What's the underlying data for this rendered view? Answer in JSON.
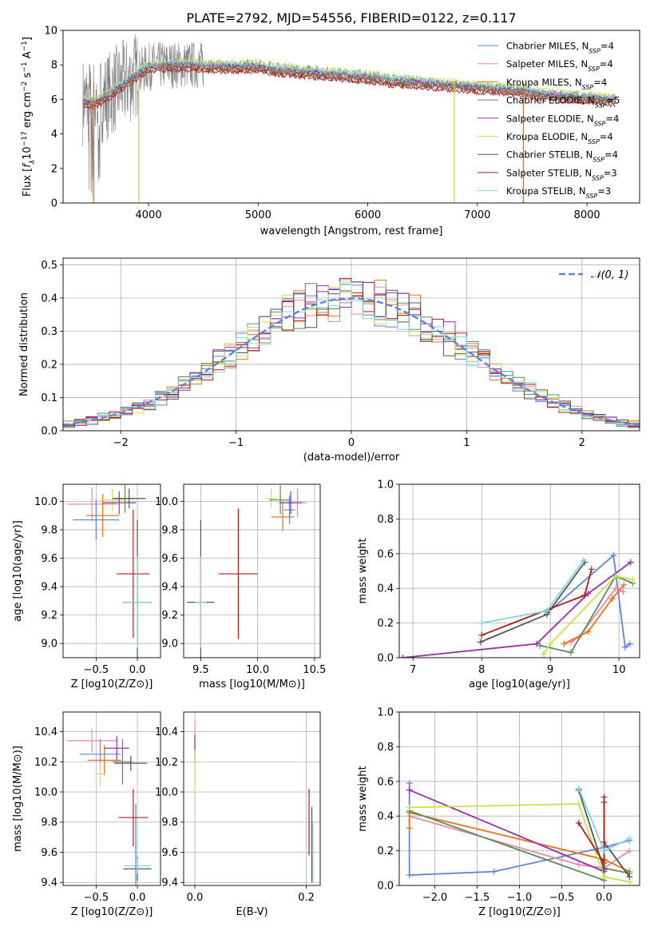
{
  "figure": {
    "title": "PLATE=2792, MJD=54556, FIBERID=0122, z=0.117",
    "palette": {
      "Chabrier MILES": "#5b86d6",
      "Salpeter MILES": "#e88aa8",
      "Kroupa MILES": "#e8731a",
      "Chabrier ELODIE": "#5c8a5c",
      "Salpeter ELODIE": "#9a2fae",
      "Kroupa ELODIE": "#c6e24a",
      "Chabrier STELIB": "#555555",
      "Salpeter STELIB": "#b01d1d",
      "Kroupa STELIB": "#7fd6dc"
    }
  },
  "chart_data": [
    {
      "id": "spectrum",
      "type": "line",
      "title": "PLATE=2792, MJD=54556, FIBERID=0122, z=0.117",
      "xlabel": "wavelength [Angstrom, rest frame]",
      "ylabel": "Flux [f_λ 10^-17 erg cm^-2 s^-1 A^-1]",
      "xlim": [
        3220,
        8480
      ],
      "ylim": [
        0,
        10
      ],
      "xticks": [
        4000,
        5000,
        6000,
        7000,
        8000
      ],
      "yticks": [
        0,
        2,
        4,
        6,
        8,
        10
      ],
      "legend_position": "right",
      "observed_series": {
        "name": "data",
        "color": "#808080",
        "x": [
          3400,
          3500,
          3600,
          3700,
          3800,
          3900,
          4000,
          4200,
          4400,
          4600,
          4800,
          5000,
          5200,
          5400,
          5600,
          5800,
          6000,
          6200,
          6400,
          6600,
          6800,
          7000,
          7200,
          7400,
          7600,
          7800,
          8000,
          8200
        ],
        "y": [
          5.9,
          5.8,
          6.1,
          6.6,
          7.0,
          7.5,
          7.9,
          8.0,
          8.0,
          7.9,
          7.9,
          7.9,
          7.7,
          7.6,
          7.5,
          7.4,
          7.3,
          7.1,
          7.0,
          6.9,
          6.8,
          6.7,
          6.6,
          6.5,
          6.3,
          6.2,
          6.1,
          6.0
        ]
      },
      "models": [
        {
          "name": "Chabrier MILES",
          "legend": "Chabrier MILES, N_SSP=4",
          "offset": 0.0
        },
        {
          "name": "Salpeter MILES",
          "legend": "Salpeter MILES, N_SSP=4",
          "offset": -0.05
        },
        {
          "name": "Kroupa MILES",
          "legend": "Kroupa MILES, N_SSP=4",
          "offset": -0.1
        },
        {
          "name": "Chabrier ELODIE",
          "legend": "Chabrier ELODIE, N_SSP=5",
          "offset": 0.05
        },
        {
          "name": "Salpeter ELODIE",
          "legend": "Salpeter ELODIE, N_SSP=4",
          "offset": 0.1
        },
        {
          "name": "Kroupa ELODIE",
          "legend": "Kroupa ELODIE, N_SSP=4",
          "offset": 0.25
        },
        {
          "name": "Chabrier STELIB",
          "legend": "Chabrier STELIB, N_SSP=4",
          "offset": -0.15
        },
        {
          "name": "Salpeter STELIB",
          "legend": "Salpeter STELIB, N_SSP=3",
          "offset": -0.3
        },
        {
          "name": "Kroupa STELIB",
          "legend": "Kroupa STELIB, N_SSP=3",
          "offset": 0.15
        }
      ]
    },
    {
      "id": "residuals",
      "type": "line",
      "xlabel": "(data-model)/error",
      "ylabel": "Normed distribution",
      "xlim": [
        -2.5,
        2.5
      ],
      "ylim": [
        0,
        0.52
      ],
      "xticks": [
        -2,
        -1,
        0,
        1,
        2
      ],
      "yticks": [
        0.0,
        0.1,
        0.2,
        0.3,
        0.4,
        0.5
      ],
      "reference_curve": {
        "name": "N(0,1)",
        "mu": 0,
        "sigma": 1,
        "legend_position": "top-right"
      },
      "bin_width": 0.1,
      "histogram_models": [
        "Chabrier MILES",
        "Salpeter MILES",
        "Kroupa MILES",
        "Chabrier ELODIE",
        "Salpeter ELODIE",
        "Kroupa ELODIE",
        "Chabrier STELIB",
        "Salpeter STELIB",
        "Kroupa STELIB"
      ]
    },
    {
      "id": "age-vs-Z",
      "type": "scatter",
      "xlabel": "Z [log10(Z/Z⊙)]",
      "ylabel": "age [log10(age/yr)]",
      "xlim": [
        -0.9,
        0.28
      ],
      "ylim": [
        8.9,
        10.12
      ],
      "xticks": [
        -0.5,
        0.0
      ],
      "yticks": [
        9.0,
        9.2,
        9.4,
        9.6,
        9.8,
        10.0
      ],
      "points": [
        {
          "model": "Salpeter MILES",
          "x": -0.55,
          "y": 9.98,
          "xerr": 0.3,
          "yerr": 0.12
        },
        {
          "model": "Kroupa MILES",
          "x": -0.42,
          "y": 9.9,
          "xerr": 0.2,
          "yerr": 0.15
        },
        {
          "model": "Chabrier MILES",
          "x": -0.5,
          "y": 9.87,
          "xerr": 0.28,
          "yerr": 0.14
        },
        {
          "model": "Kroupa ELODIE",
          "x": -0.3,
          "y": 10.01,
          "xerr": 0.15,
          "yerr": 0.08
        },
        {
          "model": "Salpeter ELODIE",
          "x": -0.22,
          "y": 9.99,
          "xerr": 0.2,
          "yerr": 0.08
        },
        {
          "model": "Chabrier ELODIE",
          "x": -0.15,
          "y": 10.02,
          "xerr": 0.12,
          "yerr": 0.1
        },
        {
          "model": "Chabrier STELIB",
          "x": -0.1,
          "y": 10.02,
          "xerr": 0.2,
          "yerr": 0.07
        },
        {
          "model": "Salpeter STELIB",
          "x": -0.05,
          "y": 9.49,
          "xerr": 0.2,
          "yerr": 0.45
        },
        {
          "model": "Chabrier STELIB",
          "x": 0.0,
          "y": 9.29,
          "xerr": 0.17,
          "yerr": 0.58
        },
        {
          "model": "Kroupa STELIB",
          "x": 0.0,
          "y": 9.29,
          "xerr": 0.16,
          "yerr": 0.32
        }
      ]
    },
    {
      "id": "age-vs-mass",
      "type": "scatter",
      "xlabel": "mass [log10(M/M⊙)]",
      "xlim": [
        9.35,
        10.55
      ],
      "ylim": [
        8.9,
        10.12
      ],
      "xticks": [
        9.5,
        10.0,
        10.5
      ],
      "yticks": [
        9.0,
        9.2,
        9.4,
        9.6,
        9.8,
        10.0
      ],
      "points": [
        {
          "model": "Salpeter MILES",
          "x": 10.35,
          "y": 9.99,
          "xerr": 0.08,
          "yerr": 0.1
        },
        {
          "model": "Kroupa MILES",
          "x": 10.22,
          "y": 9.89,
          "xerr": 0.1,
          "yerr": 0.1
        },
        {
          "model": "Chabrier MILES",
          "x": 10.28,
          "y": 9.94,
          "xerr": 0.05,
          "yerr": 0.1
        },
        {
          "model": "Salpeter ELODIE",
          "x": 10.29,
          "y": 9.99,
          "xerr": 0.1,
          "yerr": 0.08
        },
        {
          "model": "Kroupa ELODIE",
          "x": 10.12,
          "y": 10.02,
          "xerr": 0.05,
          "yerr": 0.07
        },
        {
          "model": "Chabrier ELODIE",
          "x": 10.2,
          "y": 10.01,
          "xerr": 0.1,
          "yerr": 0.1
        },
        {
          "model": "Salpeter STELIB",
          "x": 9.83,
          "y": 9.49,
          "xerr": 0.17,
          "yerr": 0.46
        },
        {
          "model": "Chabrier STELIB",
          "x": 9.5,
          "y": 9.29,
          "xerr": 0.12,
          "yerr": 0.58
        },
        {
          "model": "Kroupa STELIB",
          "x": 9.5,
          "y": 9.29,
          "xerr": 0.05,
          "yerr": 0.32
        }
      ]
    },
    {
      "id": "weight-vs-age",
      "type": "line",
      "xlabel": "age [log10(age/yr)]",
      "ylabel": "mass weight",
      "xlim": [
        6.8,
        10.3
      ],
      "ylim": [
        0,
        1.0
      ],
      "xticks": [
        7,
        8,
        9,
        10
      ],
      "yticks": [
        0.0,
        0.2,
        0.4,
        0.6,
        0.8,
        1.0
      ],
      "series": [
        {
          "name": "Chabrier MILES",
          "x": [
            8.96,
            9.92,
            10.09,
            10.16
          ],
          "y": [
            0.26,
            0.59,
            0.06,
            0.08
          ]
        },
        {
          "name": "Salpeter MILES",
          "x": [
            9.3,
            9.42,
            9.95,
            10.06
          ],
          "y": [
            0.09,
            0.12,
            0.4,
            0.38
          ]
        },
        {
          "name": "Kroupa MILES",
          "x": [
            9.2,
            9.55,
            9.9,
            10.07
          ],
          "y": [
            0.08,
            0.15,
            0.34,
            0.42
          ]
        },
        {
          "name": "Chabrier ELODIE",
          "x": [
            8.85,
            9.3,
            9.95,
            10.2
          ],
          "y": [
            0.07,
            0.03,
            0.47,
            0.43
          ]
        },
        {
          "name": "Salpeter ELODIE",
          "x": [
            6.85,
            8.8,
            9.55,
            10.17
          ],
          "y": [
            0.0,
            0.08,
            0.37,
            0.55
          ]
        },
        {
          "name": "Kroupa ELODIE",
          "x": [
            8.9,
            9.0,
            9.95,
            10.2
          ],
          "y": [
            0.02,
            0.08,
            0.47,
            0.45
          ]
        },
        {
          "name": "Chabrier STELIB",
          "x": [
            7.98,
            8.95,
            9.5
          ],
          "y": [
            0.09,
            0.25,
            0.55
          ]
        },
        {
          "name": "Salpeter STELIB",
          "x": [
            8.0,
            9.5,
            9.6
          ],
          "y": [
            0.13,
            0.36,
            0.51
          ]
        },
        {
          "name": "Kroupa STELIB",
          "x": [
            8.0,
            8.95,
            9.48
          ],
          "y": [
            0.2,
            0.27,
            0.56
          ]
        }
      ]
    },
    {
      "id": "mass-vs-Z",
      "type": "scatter",
      "xlabel": "Z [log10(Z/Z⊙)]",
      "ylabel": "mass [log10(M/M⊙)]",
      "xlim": [
        -0.9,
        0.28
      ],
      "ylim": [
        9.38,
        10.53
      ],
      "xticks": [
        -0.5,
        0.0
      ],
      "yticks": [
        9.4,
        9.6,
        9.8,
        10.0,
        10.2,
        10.4
      ],
      "points": [
        {
          "model": "Salpeter MILES",
          "x": -0.55,
          "y": 10.34,
          "xerr": 0.3,
          "yerr": 0.08
        },
        {
          "model": "Kroupa MILES",
          "x": -0.4,
          "y": 10.21,
          "xerr": 0.2,
          "yerr": 0.1
        },
        {
          "model": "Chabrier MILES",
          "x": -0.45,
          "y": 10.25,
          "xerr": 0.25,
          "yerr": 0.1
        },
        {
          "model": "Kroupa ELODIE",
          "x": -0.45,
          "y": 10.12,
          "xerr": 0.05,
          "yerr": 0.08
        },
        {
          "model": "Salpeter ELODIE",
          "x": -0.25,
          "y": 10.29,
          "xerr": 0.15,
          "yerr": 0.08
        },
        {
          "model": "Chabrier ELODIE",
          "x": -0.18,
          "y": 10.2,
          "xerr": 0.12,
          "yerr": 0.15
        },
        {
          "model": "Chabrier STELIB",
          "x": -0.08,
          "y": 10.19,
          "xerr": 0.2,
          "yerr": 0.05
        },
        {
          "model": "Salpeter STELIB",
          "x": -0.05,
          "y": 9.83,
          "xerr": 0.18,
          "yerr": 0.19
        },
        {
          "model": "Chabrier STELIB",
          "x": 0.0,
          "y": 9.49,
          "xerr": 0.17,
          "yerr": 0.08
        },
        {
          "model": "Kroupa STELIB",
          "x": 0.0,
          "y": 9.51,
          "xerr": 0.16,
          "yerr": 0.05
        },
        {
          "model": "Chabrier MILES",
          "x": -0.02,
          "y": 9.65,
          "xerr": 0.0,
          "yerr": 0.27
        }
      ]
    },
    {
      "id": "mass-vs-ebv",
      "type": "scatter",
      "xlabel": "E(B-V)",
      "xlim": [
        -0.02,
        0.225
      ],
      "ylim": [
        9.38,
        10.53
      ],
      "xticks": [
        0.0,
        0.2
      ],
      "yticks": [
        9.4,
        9.6,
        9.8,
        10.0,
        10.2,
        10.4
      ],
      "points": [
        {
          "model": "Salpeter MILES",
          "x": 0.0,
          "y": 10.35,
          "xerr": 0.0,
          "yerr": 0.13
        },
        {
          "model": "Salpeter ELODIE",
          "x": 0.0,
          "y": 10.28,
          "xerr": 0.0,
          "yerr": 0.1
        },
        {
          "model": "Kroupa ELODIE",
          "x": 0.0,
          "y": 10.15,
          "xerr": 0.0,
          "yerr": 0.13
        },
        {
          "model": "Salpeter STELIB",
          "x": 0.205,
          "y": 9.8,
          "xerr": 0.0,
          "yerr": 0.22
        },
        {
          "model": "Chabrier STELIB",
          "x": 0.21,
          "y": 9.65,
          "xerr": 0.0,
          "yerr": 0.25
        },
        {
          "model": "Kroupa STELIB",
          "x": 0.212,
          "y": 9.6,
          "xerr": 0.0,
          "yerr": 0.2
        }
      ]
    },
    {
      "id": "weight-vs-Z",
      "type": "line",
      "xlabel": "Z [log10(Z/Z⊙)]",
      "ylabel": "mass weight",
      "xlim": [
        -2.42,
        0.42
      ],
      "ylim": [
        0,
        1.0
      ],
      "xticks": [
        -2.0,
        -1.5,
        -1.0,
        -0.5,
        0.0
      ],
      "yticks": [
        0.0,
        0.2,
        0.4,
        0.6,
        0.8,
        1.0
      ],
      "series": [
        {
          "name": "Chabrier MILES",
          "x": [
            -2.3,
            -2.3,
            -1.3,
            0.0,
            0.3
          ],
          "y": [
            0.59,
            0.06,
            0.08,
            0.22,
            0.26
          ]
        },
        {
          "name": "Salpeter MILES",
          "x": [
            -2.3,
            -0.3,
            0.0,
            0.3
          ],
          "y": [
            0.4,
            0.12,
            0.1,
            0.2
          ]
        },
        {
          "name": "Kroupa MILES",
          "x": [
            -2.3,
            -2.3,
            0.0,
            0.3
          ],
          "y": [
            0.33,
            0.42,
            0.15,
            0.08
          ]
        },
        {
          "name": "Chabrier ELODIE",
          "x": [
            -2.3,
            0.0,
            0.0,
            0.3
          ],
          "y": [
            0.43,
            0.03,
            0.1,
            0.07
          ]
        },
        {
          "name": "Salpeter ELODIE",
          "x": [
            -2.3,
            0.0,
            0.0
          ],
          "y": [
            0.55,
            0.08,
            0.48
          ]
        },
        {
          "name": "Kroupa ELODIE",
          "x": [
            -2.3,
            -0.3,
            0.0,
            0.3
          ],
          "y": [
            0.45,
            0.47,
            0.05,
            0.02
          ]
        },
        {
          "name": "Chabrier STELIB",
          "x": [
            -0.3,
            0.0,
            0.0,
            0.3
          ],
          "y": [
            0.55,
            0.09,
            0.25,
            0.05
          ]
        },
        {
          "name": "Salpeter STELIB",
          "x": [
            -0.3,
            0.0,
            0.0
          ],
          "y": [
            0.36,
            0.13,
            0.51
          ]
        },
        {
          "name": "Kroupa STELIB",
          "x": [
            -0.3,
            0.0,
            0.3
          ],
          "y": [
            0.56,
            0.2,
            0.27
          ]
        }
      ]
    }
  ]
}
